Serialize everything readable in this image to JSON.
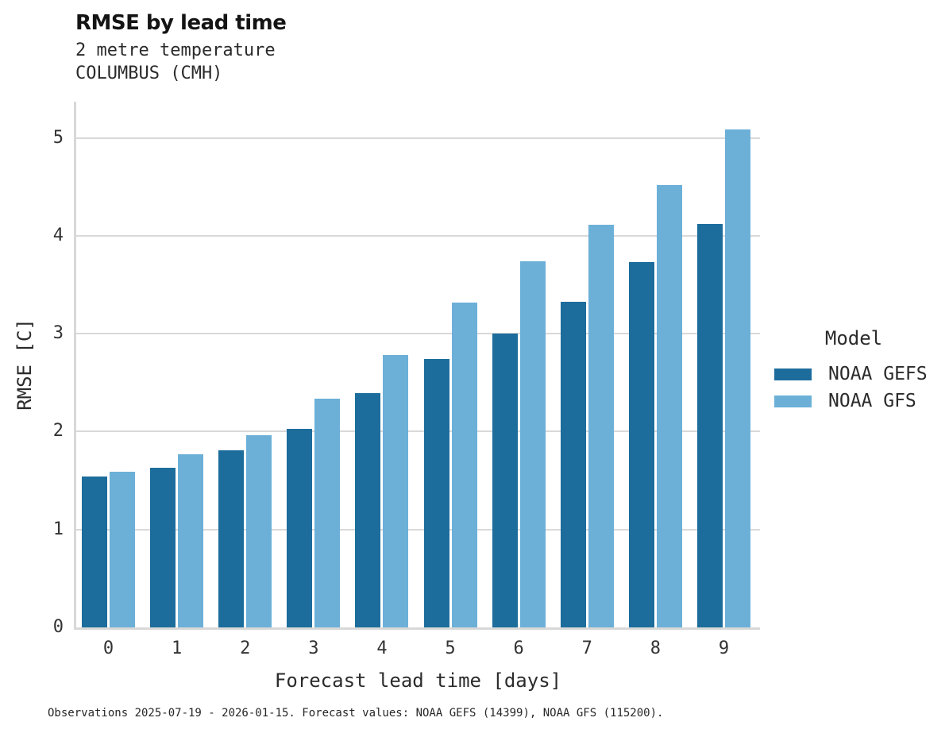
{
  "header": {
    "title": "RMSE by lead time",
    "subtitle_line1": "2 metre temperature",
    "subtitle_line2": "COLUMBUS (CMH)"
  },
  "legend": {
    "title": "Model",
    "items": [
      {
        "label": "NOAA GEFS",
        "color": "#1c6d9c"
      },
      {
        "label": "NOAA GFS",
        "color": "#6cb0d8"
      }
    ]
  },
  "footer": {
    "note": "Observations 2025-07-19 - 2026-01-15. Forecast values: NOAA GEFS (14399), NOAA GFS (115200)."
  },
  "colors": {
    "gefs_dark_blue": "#1c6d9c",
    "gfs_light_blue": "#6cb0d8",
    "gridline_gray": "#d9d9d9",
    "spine_gray": "#d8d8d8",
    "text_dark": "#262626"
  },
  "chart_data": {
    "type": "bar",
    "title": "RMSE by lead time",
    "subtitle": [
      "2 metre temperature",
      "COLUMBUS (CMH)"
    ],
    "categories": [
      "0",
      "1",
      "2",
      "3",
      "4",
      "5",
      "6",
      "7",
      "8",
      "9"
    ],
    "series": [
      {
        "name": "NOAA GEFS",
        "color": "#1c6d9c",
        "values": [
          1.54,
          1.63,
          1.81,
          2.03,
          2.39,
          2.74,
          3.0,
          3.33,
          3.73,
          4.12
        ]
      },
      {
        "name": "NOAA GFS",
        "color": "#6cb0d8",
        "values": [
          1.59,
          1.77,
          1.96,
          2.34,
          2.78,
          3.32,
          3.74,
          4.11,
          4.52,
          5.09
        ]
      }
    ],
    "xlabel": "Forecast lead time [days]",
    "ylabel": "RMSE [C]",
    "yticks": [
      0,
      1,
      2,
      3,
      4,
      5
    ],
    "ylim": [
      0,
      5.37
    ],
    "grid": true,
    "legend_position": "right",
    "legend_title": "Model",
    "caption": "Observations 2025-07-19 - 2026-01-15. Forecast values: NOAA GEFS (14399), NOAA GFS (115200)."
  }
}
